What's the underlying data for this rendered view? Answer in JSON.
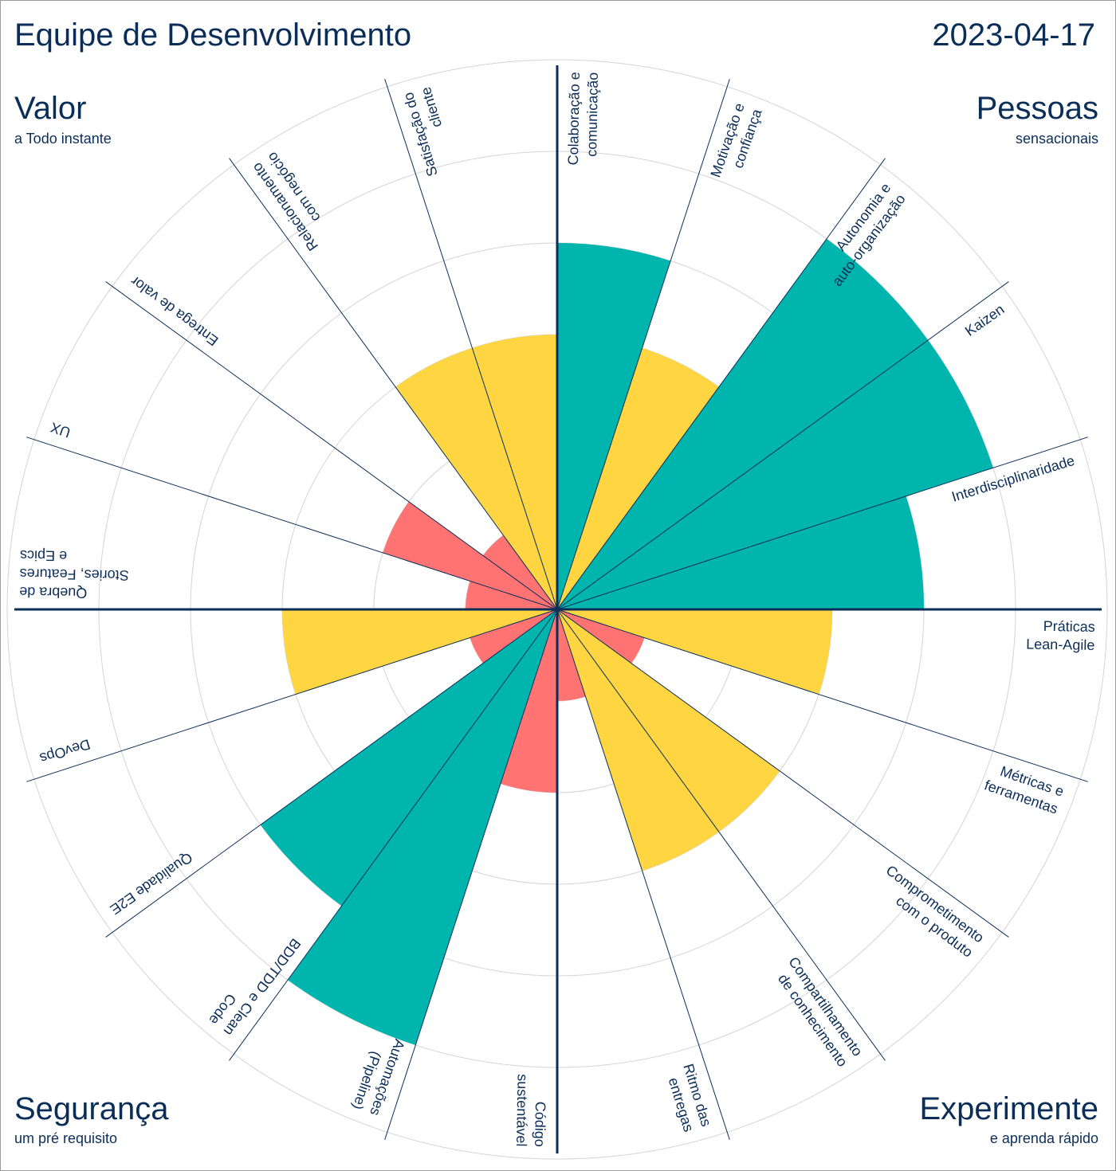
{
  "header": {
    "team_title": "Equipe de Desenvolvimento",
    "date": "2023-04-17"
  },
  "quadrants": {
    "top_left": {
      "title": "Valor",
      "subtitle": "a Todo instante"
    },
    "top_right": {
      "title": "Pessoas",
      "subtitle": "sensacionais"
    },
    "bottom_left": {
      "title": "Segurança",
      "subtitle": "um pré requisito"
    },
    "bottom_right": {
      "title": "Experimente",
      "subtitle": "e aprenda rápido"
    }
  },
  "colors": {
    "high": "#00b5ad",
    "mid": "#ffd541",
    "low": "#ff7373",
    "grid": "#d4d4d4",
    "axis": "#0b2e59",
    "text": "#0b2e59"
  },
  "chart_data": {
    "type": "polar-area",
    "max": 6,
    "rings": [
      1,
      2,
      3,
      4,
      5,
      6
    ],
    "categories": [
      {
        "label": [
          "Colaboração e",
          "comunicação"
        ],
        "value": 4,
        "level": "high"
      },
      {
        "label": [
          "Motivação e",
          "confiança"
        ],
        "value": 3,
        "level": "mid"
      },
      {
        "label": [
          "Autonomia e",
          "auto-organização"
        ],
        "value": 5,
        "level": "high"
      },
      {
        "label": [
          "Kaizen"
        ],
        "value": 5,
        "level": "high"
      },
      {
        "label": [
          "Interdisciplinaridade"
        ],
        "value": 4,
        "level": "high"
      },
      {
        "label": [
          "Práticas",
          "Lean-Agile"
        ],
        "value": 3,
        "level": "mid"
      },
      {
        "label": [
          "Métricas e",
          "ferramentas"
        ],
        "value": 1,
        "level": "low"
      },
      {
        "label": [
          "Comprometimento",
          "com o produto"
        ],
        "value": 3,
        "level": "mid"
      },
      {
        "label": [
          "Compartilhamento",
          "de conhecimento"
        ],
        "value": 3,
        "level": "mid"
      },
      {
        "label": [
          "Ritmo das",
          "entregas"
        ],
        "value": 1,
        "level": "low"
      },
      {
        "label": [
          "Código",
          "sustentável"
        ],
        "value": 2,
        "level": "low"
      },
      {
        "label": [
          "Automações",
          "(Pipeline)"
        ],
        "value": 5,
        "level": "high"
      },
      {
        "label": [
          "BDD/TDD e Clean",
          "Code"
        ],
        "value": 4,
        "level": "high"
      },
      {
        "label": [
          "Qualidade E2E"
        ],
        "value": 1,
        "level": "low"
      },
      {
        "label": [
          "DevOps"
        ],
        "value": 3,
        "level": "mid"
      },
      {
        "label": [
          "Quebra de",
          "Stories, Features",
          "e Epics"
        ],
        "value": 1,
        "level": "low"
      },
      {
        "label": [
          "UX"
        ],
        "value": 2,
        "level": "low"
      },
      {
        "label": [
          "Entrega de valor"
        ],
        "value": 1,
        "level": "low"
      },
      {
        "label": [
          "Relacionamento",
          "com negócio"
        ],
        "value": 3,
        "level": "mid"
      },
      {
        "label": [
          "Satisfação do",
          "cliente"
        ],
        "value": 3,
        "level": "mid"
      }
    ]
  }
}
